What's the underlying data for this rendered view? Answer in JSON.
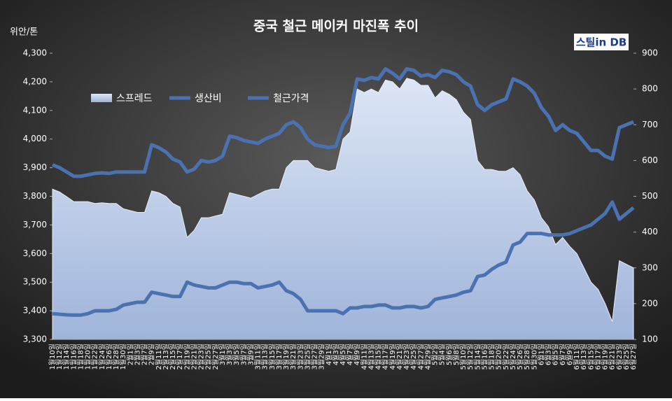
{
  "chart_data": {
    "type": "line",
    "title": "중국 철근 메이커 마진폭 추이",
    "y_label": "위안/톤",
    "logo": "스틸in DB",
    "categories": [
      "1월10일",
      "1월12일",
      "1월14일",
      "1월16일",
      "1월18일",
      "1월20일",
      "1월22일",
      "1월24일",
      "1월26일",
      "1월28일",
      "1월30일",
      "2월1일",
      "2월3일",
      "2월7일",
      "2월9일",
      "2월11일",
      "2월13일",
      "2월15일",
      "2월17일",
      "2월19일",
      "2월21일",
      "2월23일",
      "2월25일",
      "2월27일",
      "3월1일",
      "3월3일",
      "3월5일",
      "3월7일",
      "3월9일",
      "3월11일",
      "3월13일",
      "3월15일",
      "3월17일",
      "3월19일",
      "3월21일",
      "3월23일",
      "3월25일",
      "3월27일",
      "3월29일",
      "4월1일",
      "4월3일",
      "4월5일",
      "4월7일",
      "4월9일",
      "4월11일",
      "4월13일",
      "4월15일",
      "4월17일",
      "4월19일",
      "4월21일",
      "4월23일",
      "4월25일",
      "4월27일",
      "4월29일",
      "5월2일",
      "5월4일",
      "5월6일",
      "5월8일",
      "5월10일",
      "5월12일",
      "5월14일",
      "5월16일",
      "5월18일",
      "5월20일",
      "5월22일",
      "5월24일",
      "5월26일",
      "5월28일",
      "5월30일",
      "6월1일",
      "6월3일",
      "6월5일",
      "6월7일",
      "6월9일",
      "6월11일",
      "6월13일",
      "6월15일",
      "6월17일",
      "6월19일",
      "6월21일",
      "6월23일",
      "6월25일",
      "6월27일"
    ],
    "series": [
      {
        "name": "스프레드",
        "kind": "area",
        "axis": "y2",
        "color": "#b8c8e8",
        "values": [
          520,
          512,
          499,
          485,
          485,
          485,
          480,
          482,
          480,
          480,
          465,
          460,
          455,
          455,
          515,
          510,
          500,
          480,
          470,
          385,
          405,
          440,
          440,
          445,
          450,
          510,
          505,
          500,
          495,
          505,
          515,
          520,
          520,
          580,
          600,
          600,
          600,
          580,
          575,
          570,
          575,
          660,
          680,
          800,
          790,
          800,
          790,
          825,
          820,
          800,
          830,
          825,
          810,
          810,
          775,
          795,
          785,
          770,
          735,
          715,
          600,
          575,
          575,
          570,
          570,
          580,
          560,
          515,
          490,
          440,
          415,
          365,
          385,
          360,
          340,
          300,
          260,
          240,
          200,
          150,
          320,
          310,
          300
        ]
      },
      {
        "name": "생산비",
        "kind": "line",
        "color": "#4a72b0",
        "values": [
          3390,
          3388,
          3386,
          3385,
          3385,
          3390,
          3400,
          3400,
          3400,
          3405,
          3420,
          3425,
          3430,
          3430,
          3465,
          3460,
          3455,
          3450,
          3450,
          3500,
          3490,
          3485,
          3480,
          3480,
          3490,
          3500,
          3500,
          3495,
          3495,
          3480,
          3485,
          3490,
          3500,
          3470,
          3460,
          3440,
          3400,
          3400,
          3400,
          3400,
          3400,
          3390,
          3410,
          3410,
          3415,
          3415,
          3420,
          3420,
          3410,
          3410,
          3415,
          3415,
          3410,
          3415,
          3440,
          3445,
          3450,
          3455,
          3465,
          3470,
          3520,
          3525,
          3545,
          3560,
          3570,
          3630,
          3640,
          3670,
          3670,
          3670,
          3665,
          3665,
          3665,
          3670,
          3680,
          3690,
          3700,
          3720,
          3740,
          3780,
          3720,
          3740,
          3760
        ]
      },
      {
        "name": "철근가격",
        "kind": "line",
        "color": "#4a72b0",
        "values": [
          3910,
          3900,
          3885,
          3870,
          3870,
          3875,
          3880,
          3882,
          3880,
          3885,
          3885,
          3885,
          3885,
          3885,
          3980,
          3970,
          3955,
          3930,
          3920,
          3885,
          3895,
          3925,
          3920,
          3925,
          3940,
          4010,
          4005,
          3995,
          3990,
          3985,
          4000,
          4010,
          4020,
          4050,
          4060,
          4040,
          4000,
          3980,
          3975,
          3970,
          3975,
          4050,
          4090,
          4210,
          4205,
          4215,
          4210,
          4245,
          4230,
          4210,
          4245,
          4240,
          4220,
          4225,
          4215,
          4240,
          4235,
          4225,
          4200,
          4185,
          4120,
          4100,
          4120,
          4130,
          4140,
          4210,
          4200,
          4185,
          4160,
          4110,
          4080,
          4030,
          4050,
          4030,
          4020,
          3990,
          3960,
          3960,
          3940,
          3930,
          4040,
          4050,
          4060
        ]
      }
    ],
    "ylim": [
      3300,
      4300
    ],
    "yticks": [
      {
        "value": 3300,
        "label": "3,300"
      },
      {
        "value": 3400,
        "label": "3,400"
      },
      {
        "value": 3500,
        "label": "3,500"
      },
      {
        "value": 3600,
        "label": "3,600"
      },
      {
        "value": 3700,
        "label": "3,700"
      },
      {
        "value": 3800,
        "label": "3,800"
      },
      {
        "value": 3900,
        "label": "3,900"
      },
      {
        "value": 4000,
        "label": "4,000"
      },
      {
        "value": 4100,
        "label": "4,100"
      },
      {
        "value": 4200,
        "label": "4,200"
      },
      {
        "value": 4300,
        "label": "4,300"
      }
    ],
    "y2lim": [
      100,
      900
    ],
    "y2ticks": [
      100,
      200,
      300,
      400,
      500,
      600,
      700,
      800,
      900
    ],
    "legend": "top-left"
  }
}
